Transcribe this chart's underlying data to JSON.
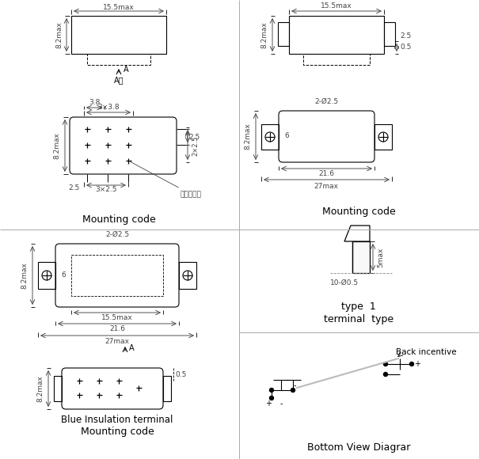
{
  "bg_color": "#ffffff",
  "line_color": "#000000",
  "dim_color": "#444444",
  "divider_color": "#aaaaaa",
  "labels": {
    "tl_caption": "Mounting code",
    "tr_caption": "Mounting code",
    "bl_caption1": "Blue Insulation terminal",
    "bl_caption2": "Mounting code",
    "br_type": "type  1",
    "br_terminal": "terminal  type",
    "br_bottom": "Bottom View Diagrar"
  }
}
